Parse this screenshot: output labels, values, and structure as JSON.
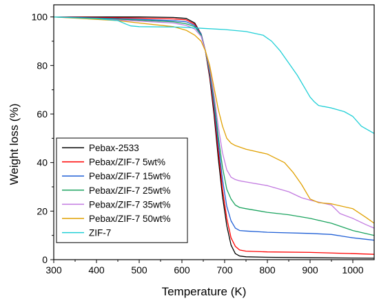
{
  "chart_data": {
    "type": "line",
    "title": "",
    "xlabel": "Temperature (K)",
    "ylabel": "Weight loss (%)",
    "xlim": [
      300,
      1050
    ],
    "ylim": [
      0,
      105
    ],
    "xticks": [
      300,
      400,
      500,
      600,
      700,
      800,
      900,
      1000
    ],
    "yticks": [
      0,
      20,
      40,
      60,
      80,
      100
    ],
    "grid": false,
    "legend_position": "bottom-left",
    "series": [
      {
        "name": "Pebax-2533",
        "color": "#000000",
        "x": [
          300,
          400,
          500,
          580,
          610,
          630,
          645,
          655,
          665,
          675,
          685,
          695,
          705,
          715,
          725,
          735,
          750,
          800,
          900,
          1050
        ],
        "y": [
          100,
          100,
          100,
          99.8,
          99.4,
          97.5,
          93,
          86,
          75,
          60,
          42,
          26,
          14,
          6,
          2.5,
          1.5,
          1.2,
          1.0,
          0.8,
          0.6
        ]
      },
      {
        "name": "Pebax/ZIF-7 5wt%",
        "color": "#ff0000",
        "x": [
          300,
          400,
          500,
          580,
          610,
          630,
          645,
          655,
          665,
          675,
          685,
          695,
          705,
          715,
          725,
          735,
          750,
          800,
          900,
          1000,
          1050
        ],
        "y": [
          100,
          99.8,
          99.5,
          99.2,
          98.8,
          97,
          93,
          86,
          76,
          62,
          45,
          29,
          17,
          9,
          5.5,
          4,
          3.5,
          3.2,
          3.0,
          2.5,
          2.2
        ]
      },
      {
        "name": "Pebax/ZIF-7 15wt%",
        "color": "#1f5fd6",
        "x": [
          300,
          400,
          500,
          580,
          610,
          630,
          645,
          655,
          665,
          675,
          685,
          695,
          705,
          715,
          725,
          735,
          750,
          800,
          900,
          950,
          1000,
          1050
        ],
        "y": [
          100,
          99.6,
          99,
          98.5,
          98,
          96.5,
          93,
          86,
          77,
          64,
          48,
          33,
          22,
          16,
          13,
          12,
          11.8,
          11.3,
          10.8,
          10.4,
          9,
          8
        ]
      },
      {
        "name": "Pebax/ZIF-7 25wt%",
        "color": "#1aa35e",
        "x": [
          300,
          400,
          500,
          580,
          610,
          630,
          645,
          655,
          665,
          675,
          685,
          695,
          705,
          715,
          725,
          735,
          750,
          800,
          850,
          900,
          950,
          1000,
          1050
        ],
        "y": [
          100,
          99.4,
          98.7,
          98,
          97.2,
          96,
          92.5,
          86,
          78,
          66,
          51,
          38,
          29,
          25,
          22.5,
          21.5,
          21,
          19.5,
          18.5,
          17,
          15,
          12,
          10
        ]
      },
      {
        "name": "Pebax/ZIF-7 35wt%",
        "color": "#c27ae0",
        "x": [
          300,
          400,
          500,
          580,
          610,
          630,
          645,
          655,
          665,
          675,
          685,
          695,
          705,
          715,
          725,
          735,
          750,
          800,
          850,
          880,
          900,
          950,
          970,
          1000,
          1030,
          1050
        ],
        "y": [
          100,
          99.2,
          98.3,
          97.5,
          96.5,
          95,
          92,
          86,
          79,
          68,
          55,
          44,
          37,
          34,
          33,
          32.5,
          32,
          30.5,
          28,
          25.5,
          24.5,
          22.5,
          19,
          17,
          14.5,
          13
        ]
      },
      {
        "name": "Pebax/ZIF-7 50wt%",
        "color": "#e0a000",
        "x": [
          300,
          400,
          450,
          500,
          580,
          610,
          630,
          645,
          655,
          665,
          675,
          685,
          695,
          705,
          715,
          725,
          750,
          800,
          840,
          860,
          880,
          900,
          920,
          950,
          1000,
          1030,
          1050
        ],
        "y": [
          100,
          99,
          98.5,
          97.5,
          96,
          94.5,
          92.5,
          90,
          86,
          80,
          71,
          62,
          55,
          50,
          48,
          47,
          45.5,
          43.5,
          40,
          36,
          31,
          25,
          23.5,
          23,
          21,
          17.5,
          15
        ]
      },
      {
        "name": "ZIF-7",
        "color": "#1fcfd6",
        "x": [
          300,
          400,
          450,
          470,
          480,
          500,
          600,
          650,
          700,
          750,
          790,
          810,
          830,
          850,
          870,
          890,
          900,
          910,
          920,
          950,
          980,
          1000,
          1020,
          1050
        ],
        "y": [
          100,
          99.3,
          98.5,
          97,
          96.3,
          96,
          95.8,
          95.3,
          94.8,
          94,
          92.5,
          90,
          86,
          81,
          76,
          70,
          67,
          65,
          63.5,
          62.5,
          61,
          59,
          55,
          52
        ]
      }
    ]
  }
}
